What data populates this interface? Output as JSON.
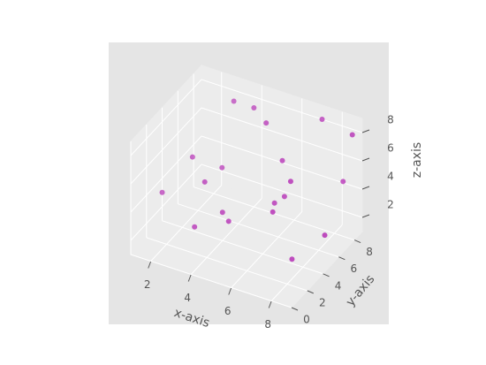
{
  "chart_data": {
    "type": "scatter3d",
    "x_label": "x-axis",
    "y_label": "y-axis",
    "z_label": "z-axis",
    "x": [
      3,
      4,
      5,
      7,
      8.7,
      2,
      3,
      6,
      3,
      7,
      8.2,
      1,
      6.3,
      6,
      6.5,
      4,
      4.5,
      3,
      8.5,
      7.3
    ],
    "y": [
      8,
      8,
      7,
      9,
      8.5,
      5.3,
      6.5,
      6.5,
      4.3,
      5,
      8.6,
      4,
      6,
      5.5,
      4,
      4,
      3.5,
      3,
      5.5,
      4.4
    ],
    "z": [
      8,
      8,
      8,
      8,
      8,
      5.2,
      4.2,
      6.1,
      4.5,
      6,
      4.4,
      3,
      4,
      3.7,
      4.2,
      3,
      2.9,
      2.1,
      2.6,
      1
    ],
    "color": "#b01eb0",
    "xlim": [
      1,
      9
    ],
    "ylim": [
      0,
      9
    ],
    "zlim": [
      1,
      9
    ],
    "xticks": [
      2,
      4,
      6,
      8
    ],
    "yticks": [
      0,
      2,
      4,
      6,
      8
    ],
    "zticks": [
      2,
      4,
      6,
      8
    ],
    "grid": true
  }
}
